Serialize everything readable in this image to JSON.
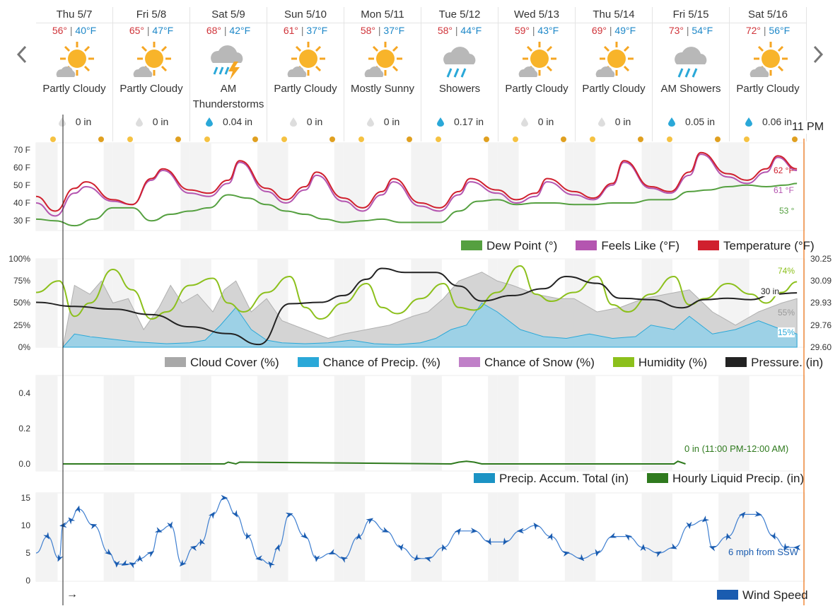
{
  "navigation": {
    "prev_icon": "chevron-left-icon",
    "next_icon": "chevron-right-icon"
  },
  "days": [
    {
      "label": "Thu 5/7",
      "hi": "56°",
      "lo": "40°F",
      "icon": "partly-cloudy-icon",
      "condition": "Partly Cloudy",
      "precip": "0 in",
      "drop": "gray"
    },
    {
      "label": "Fri 5/8",
      "hi": "65°",
      "lo": "47°F",
      "icon": "partly-cloudy-icon",
      "condition": "Partly Cloudy",
      "precip": "0 in",
      "drop": "gray"
    },
    {
      "label": "Sat 5/9",
      "hi": "68°",
      "lo": "42°F",
      "icon": "thunderstorm-icon",
      "condition": "AM Thunderstorms",
      "precip": "0.04 in",
      "drop": "blue"
    },
    {
      "label": "Sun 5/10",
      "hi": "61°",
      "lo": "37°F",
      "icon": "partly-cloudy-icon",
      "condition": "Partly Cloudy",
      "precip": "0 in",
      "drop": "gray"
    },
    {
      "label": "Mon 5/11",
      "hi": "58°",
      "lo": "37°F",
      "icon": "partly-cloudy-icon",
      "condition": "Mostly Sunny",
      "precip": "0 in",
      "drop": "gray"
    },
    {
      "label": "Tue 5/12",
      "hi": "58°",
      "lo": "44°F",
      "icon": "rain-icon",
      "condition": "Showers",
      "precip": "0.17 in",
      "drop": "blue"
    },
    {
      "label": "Wed 5/13",
      "hi": "59°",
      "lo": "43°F",
      "icon": "partly-cloudy-icon",
      "condition": "Partly Cloudy",
      "precip": "0 in",
      "drop": "gray"
    },
    {
      "label": "Thu 5/14",
      "hi": "69°",
      "lo": "49°F",
      "icon": "partly-cloudy-icon",
      "condition": "Partly Cloudy",
      "precip": "0 in",
      "drop": "gray"
    },
    {
      "label": "Fri 5/15",
      "hi": "73°",
      "lo": "54°F",
      "icon": "rain-icon",
      "condition": "AM Showers",
      "precip": "0.05 in",
      "drop": "blue"
    },
    {
      "label": "Sat 5/16",
      "hi": "72°",
      "lo": "56°F",
      "icon": "partly-cloudy-icon",
      "condition": "Partly Cloudy",
      "precip": "0.06 in",
      "drop": "blue"
    }
  ],
  "hover": {
    "time": "11 PM",
    "temp": "62 °F",
    "feels": "61 °F",
    "dew": "53 °",
    "humidity": "74%",
    "pressure": "30 in",
    "cloud": "55%",
    "precip_chance": "15%",
    "hourly_precip": "0 in (11:00 PM-12:00 AM)",
    "wind": "6 mph from SSW"
  },
  "colors": {
    "temperature": "#d0202e",
    "feels_like": "#b455b0",
    "dew_point": "#55a040",
    "cloud_cover": "#a8a8a8",
    "precip_chance": "#2aa8d8",
    "snow_chance": "#c080c8",
    "humidity": "#8cc01c",
    "pressure": "#222222",
    "precip_accum": "#1b93c4",
    "hourly_precip": "#2f7a1e",
    "wind": "#1a5cb0",
    "hover_line": "#f08a3c"
  },
  "legends": {
    "temp_panel": [
      "Dew Point (°)",
      "Feels Like (°F)",
      "Temperature (°F)"
    ],
    "sky_panel": [
      "Cloud Cover (%)",
      "Chance of Precip. (%)",
      "Chance of Snow (%)",
      "Humidity (%)",
      "Pressure. (in)"
    ],
    "precip_panel": [
      "Precip. Accum. Total (in)",
      "Hourly Liquid Precip. (in)"
    ],
    "wind_panel": [
      "Wind Speed"
    ]
  },
  "wind_arrow_label": "→",
  "chart_data": [
    {
      "type": "line",
      "title": "",
      "y_ticks": [
        "70 F",
        "60 F",
        "50 F",
        "40 F",
        "30 F"
      ],
      "ylim": [
        24,
        78
      ],
      "x_range_days": [
        0,
        10
      ],
      "series": [
        {
          "name": "Temperature (°F)",
          "x": [
            0,
            0.25,
            0.5,
            0.65,
            1.0,
            1.25,
            1.5,
            1.65,
            2.0,
            2.25,
            2.5,
            2.65,
            3.0,
            3.25,
            3.5,
            3.65,
            4.0,
            4.25,
            4.5,
            4.65,
            5.0,
            5.25,
            5.5,
            5.65,
            6.0,
            6.25,
            6.5,
            6.65,
            7.0,
            7.25,
            7.5,
            7.65,
            8.0,
            8.25,
            8.5,
            8.65,
            9.0,
            9.25,
            9.5,
            9.65,
            9.9
          ],
          "values": [
            45,
            36,
            50,
            54,
            43,
            40,
            56,
            62,
            49,
            47,
            55,
            67,
            50,
            43,
            51,
            60,
            44,
            38,
            48,
            56,
            41,
            38,
            48,
            56,
            49,
            43,
            47,
            56,
            48,
            44,
            53,
            67,
            51,
            48,
            60,
            72,
            59,
            55,
            62,
            70,
            62
          ]
        },
        {
          "name": "Feels Like (°F)",
          "x": [
            0,
            0.25,
            0.5,
            0.65,
            1.0,
            1.25,
            1.5,
            1.65,
            2.0,
            2.25,
            2.5,
            2.65,
            3.0,
            3.25,
            3.5,
            3.65,
            4.0,
            4.25,
            4.5,
            4.65,
            5.0,
            5.25,
            5.5,
            5.65,
            6.0,
            6.25,
            6.5,
            6.65,
            7.0,
            7.25,
            7.5,
            7.65,
            8.0,
            8.25,
            8.5,
            8.65,
            9.0,
            9.25,
            9.5,
            9.65,
            9.9
          ],
          "values": [
            41,
            33,
            47,
            51,
            42,
            40,
            55,
            61,
            47,
            45,
            53,
            66,
            48,
            41,
            49,
            58,
            42,
            36,
            46,
            54,
            39,
            36,
            46,
            54,
            47,
            41,
            45,
            54,
            46,
            43,
            52,
            66,
            50,
            47,
            58,
            71,
            57,
            53,
            60,
            69,
            61
          ]
        },
        {
          "name": "Dew Point (°)",
          "x": [
            0,
            0.25,
            0.5,
            0.75,
            1.0,
            1.25,
            1.5,
            1.75,
            2.0,
            2.25,
            2.5,
            2.75,
            3.0,
            3.25,
            3.5,
            3.75,
            4.0,
            4.25,
            4.5,
            4.75,
            5.0,
            5.25,
            5.5,
            5.75,
            6.0,
            6.25,
            6.5,
            6.75,
            7.0,
            7.25,
            7.5,
            7.75,
            8.0,
            8.25,
            8.5,
            8.75,
            9.0,
            9.25,
            9.5,
            9.75,
            9.9
          ],
          "values": [
            31,
            30,
            27,
            31,
            38,
            38,
            30,
            34,
            36,
            38,
            46,
            44,
            40,
            36,
            34,
            31,
            29,
            30,
            31,
            29,
            29,
            29,
            36,
            42,
            43,
            40,
            41,
            41,
            40,
            40,
            41,
            41,
            43,
            43,
            48,
            49,
            51,
            52,
            51,
            52,
            53
          ]
        }
      ]
    },
    {
      "type": "area",
      "title": "",
      "y_ticks_left": [
        "100%",
        "75%",
        "50%",
        "25%",
        "0%"
      ],
      "y_ticks_right": [
        "30.25",
        "30.09",
        "29.93",
        "29.76",
        "29.60"
      ],
      "ylim": [
        0,
        100
      ],
      "ylim_right": [
        29.6,
        30.25
      ],
      "series": [
        {
          "name": "Cloud Cover (%)",
          "x": [
            0.35,
            0.5,
            0.7,
            0.85,
            1.0,
            1.2,
            1.4,
            1.6,
            1.75,
            1.9,
            2.1,
            2.3,
            2.45,
            2.6,
            2.8,
            3.0,
            3.2,
            3.5,
            3.8,
            4.0,
            4.3,
            4.6,
            4.9,
            5.1,
            5.3,
            5.5,
            5.8,
            6.0,
            6.2,
            6.5,
            6.8,
            7.0,
            7.3,
            7.6,
            7.9,
            8.2,
            8.5,
            8.8,
            9.1,
            9.4,
            9.7,
            9.9
          ],
          "values": [
            0,
            70,
            60,
            75,
            50,
            55,
            20,
            45,
            70,
            50,
            60,
            40,
            65,
            75,
            40,
            55,
            30,
            20,
            10,
            15,
            20,
            25,
            35,
            40,
            55,
            75,
            85,
            75,
            70,
            60,
            55,
            55,
            40,
            45,
            55,
            60,
            65,
            40,
            25,
            40,
            50,
            55
          ]
        },
        {
          "name": "Chance of Precip. (%)",
          "x": [
            0.35,
            0.5,
            0.7,
            0.9,
            1.1,
            1.3,
            1.5,
            1.7,
            2.0,
            2.2,
            2.4,
            2.6,
            2.8,
            3.0,
            3.2,
            3.5,
            3.8,
            4.1,
            4.4,
            4.7,
            5.0,
            5.2,
            5.4,
            5.6,
            5.8,
            6.0,
            6.3,
            6.6,
            6.9,
            7.2,
            7.5,
            7.8,
            8.0,
            8.3,
            8.5,
            8.8,
            9.1,
            9.4,
            9.7,
            9.9
          ],
          "values": [
            0,
            15,
            12,
            10,
            8,
            6,
            5,
            4,
            5,
            8,
            25,
            45,
            20,
            8,
            5,
            4,
            5,
            8,
            4,
            3,
            5,
            10,
            20,
            25,
            50,
            40,
            20,
            12,
            10,
            15,
            10,
            12,
            25,
            20,
            35,
            15,
            20,
            30,
            20,
            15
          ]
        },
        {
          "name": "Humidity (%)",
          "x": [
            0,
            0.3,
            0.5,
            0.7,
            1.0,
            1.25,
            1.5,
            1.7,
            2.0,
            2.3,
            2.5,
            2.7,
            3.0,
            3.3,
            3.5,
            3.7,
            4.0,
            4.3,
            4.5,
            4.7,
            5.0,
            5.3,
            5.5,
            5.7,
            6.0,
            6.3,
            6.5,
            6.7,
            7.0,
            7.3,
            7.5,
            7.7,
            8.0,
            8.3,
            8.5,
            8.7,
            9.0,
            9.3,
            9.5,
            9.7,
            9.9
          ],
          "values": [
            62,
            75,
            35,
            50,
            88,
            65,
            32,
            40,
            70,
            78,
            50,
            40,
            62,
            80,
            45,
            32,
            50,
            72,
            45,
            38,
            55,
            72,
            45,
            42,
            62,
            92,
            60,
            52,
            62,
            80,
            48,
            40,
            60,
            80,
            48,
            55,
            72,
            60,
            50,
            62,
            74
          ]
        },
        {
          "name": "Pressure. (in)",
          "x": [
            0,
            0.5,
            1.0,
            1.5,
            2.0,
            2.5,
            2.9,
            3.3,
            3.7,
            4.0,
            4.3,
            4.5,
            4.8,
            5.2,
            5.5,
            5.8,
            6.2,
            6.6,
            6.9,
            7.3,
            7.6,
            8.0,
            8.4,
            8.7,
            9.0,
            9.3,
            9.6,
            9.9
          ],
          "values": [
            29.93,
            29.9,
            29.88,
            29.84,
            29.75,
            29.7,
            29.62,
            29.92,
            29.93,
            29.98,
            30.1,
            30.18,
            30.15,
            30.15,
            30.05,
            29.94,
            29.98,
            30.03,
            30.12,
            30.07,
            29.96,
            29.95,
            29.89,
            29.95,
            29.96,
            29.95,
            29.99,
            30.0
          ]
        }
      ]
    },
    {
      "type": "line",
      "title": "",
      "y_ticks": [
        "0.4",
        "0.2",
        "0.0"
      ],
      "ylim": [
        0,
        0.5
      ],
      "series": [
        {
          "name": "Hourly Liquid Precip. (in)",
          "x": [
            0.35,
            2.45,
            2.5,
            2.6,
            2.65,
            5.4,
            5.5,
            5.6,
            5.7,
            5.8,
            8.3,
            8.35,
            8.45
          ],
          "values": [
            0,
            0,
            0.01,
            0,
            0.01,
            0,
            0.01,
            0.015,
            0.01,
            0,
            0,
            0.015,
            0
          ]
        },
        {
          "name": "Precip. Accum. Total (in)",
          "x": [
            0.35,
            9.9
          ],
          "values": [
            0,
            0
          ]
        }
      ]
    },
    {
      "type": "line",
      "title": "",
      "y_ticks": [
        "15",
        "10",
        "5",
        "0"
      ],
      "ylim": [
        0,
        16
      ],
      "series": [
        {
          "name": "Wind Speed",
          "x": [
            0,
            0.15,
            0.3,
            0.35,
            0.45,
            0.55,
            0.75,
            0.95,
            1.05,
            1.15,
            1.25,
            1.35,
            1.5,
            1.6,
            1.75,
            1.9,
            2.05,
            2.15,
            2.3,
            2.45,
            2.6,
            2.75,
            2.9,
            3.05,
            3.15,
            3.3,
            3.5,
            3.65,
            3.85,
            4.0,
            4.2,
            4.35,
            4.55,
            4.75,
            4.95,
            5.1,
            5.3,
            5.5,
            5.7,
            5.9,
            6.1,
            6.3,
            6.5,
            6.7,
            6.9,
            7.1,
            7.3,
            7.5,
            7.7,
            7.9,
            8.1,
            8.3,
            8.5,
            8.7,
            8.8,
            9.0,
            9.2,
            9.4,
            9.6,
            9.75,
            9.9
          ],
          "values": [
            5,
            8,
            4,
            10,
            11,
            13,
            10,
            5,
            3,
            3,
            3,
            4,
            5,
            9,
            10,
            3,
            6,
            7,
            12,
            15,
            12,
            8,
            4,
            3,
            6,
            12,
            8,
            4,
            5,
            4,
            8,
            11,
            9,
            6,
            4,
            4,
            6,
            9,
            9,
            7,
            7,
            9,
            10,
            8,
            5,
            4,
            5,
            8,
            8,
            6,
            5,
            6,
            10,
            11,
            6,
            8,
            12,
            12,
            8,
            6,
            6
          ]
        }
      ]
    }
  ]
}
